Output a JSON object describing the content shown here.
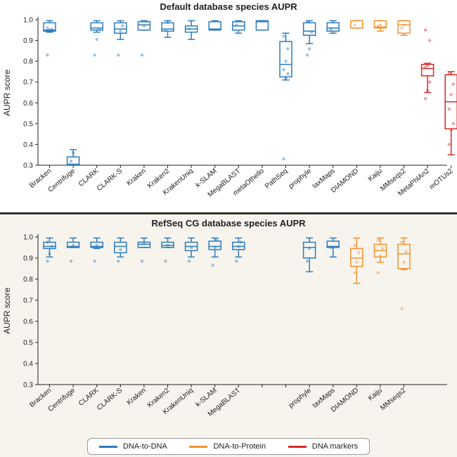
{
  "colors": {
    "dna": "#2c7bbd",
    "protein": "#f5922f",
    "markers": "#d62b2b"
  },
  "legend": [
    {
      "label": "DNA-to-DNA",
      "group": "dna"
    },
    {
      "label": "DNA-to-Protein",
      "group": "protein"
    },
    {
      "label": "DNA markers",
      "group": "markers"
    }
  ],
  "chart_data": [
    {
      "type": "box",
      "title": "Default database species AUPR",
      "ylabel": "AUPR score",
      "ylim": [
        0.3,
        1.0
      ],
      "yticks": [
        "0.3",
        "0.4",
        "0.5",
        "0.6",
        "0.7",
        "0.8",
        "0.9",
        "1.0"
      ],
      "categories": [
        "Bracken",
        "Centrifuge",
        "CLARK",
        "CLARK-S",
        "Kraken",
        "Kraken2",
        "KrakenUniq",
        "k-SLAM",
        "MegaBLAST",
        "metaOthello",
        "PathSeq",
        "prophyle",
        "taxMaps",
        "DIAMOND",
        "Kaiju",
        "MMseqs2",
        "MetaPhlAn2",
        "mOTUs2"
      ],
      "boxes": [
        {
          "group": "dna",
          "min": 0.94,
          "q1": 0.945,
          "median": 0.95,
          "q3": 0.985,
          "max": 0.995,
          "points": [
            0.83,
            0.95,
            0.955,
            0.96
          ]
        },
        {
          "group": "dna",
          "min": 0.3,
          "q1": 0.3,
          "median": 0.305,
          "q3": 0.34,
          "max": 0.375,
          "points": [
            0.32,
            0.36
          ]
        },
        {
          "group": "dna",
          "min": 0.94,
          "q1": 0.95,
          "median": 0.96,
          "q3": 0.985,
          "max": 0.995,
          "points": [
            0.83,
            0.905,
            0.955
          ]
        },
        {
          "group": "dna",
          "min": 0.905,
          "q1": 0.935,
          "median": 0.955,
          "q3": 0.985,
          "max": 0.995,
          "points": [
            0.83,
            0.945,
            0.97
          ]
        },
        {
          "group": "dna",
          "min": 0.95,
          "q1": 0.95,
          "median": 0.975,
          "q3": 0.99,
          "max": 0.995,
          "points": [
            0.83,
            0.97
          ]
        },
        {
          "group": "dna",
          "min": 0.915,
          "q1": 0.945,
          "median": 0.955,
          "q3": 0.985,
          "max": 0.995,
          "points": [
            0.95,
            0.985
          ]
        },
        {
          "group": "dna",
          "min": 0.905,
          "q1": 0.94,
          "median": 0.955,
          "q3": 0.97,
          "max": 0.995,
          "points": [
            0.955
          ]
        },
        {
          "group": "dna",
          "min": 0.95,
          "q1": 0.95,
          "median": 0.955,
          "q3": 0.99,
          "max": 0.995,
          "points": []
        },
        {
          "group": "dna",
          "min": 0.935,
          "q1": 0.95,
          "median": 0.97,
          "q3": 0.99,
          "max": 0.995,
          "points": [
            0.975
          ]
        },
        {
          "group": "dna",
          "min": 0.95,
          "q1": 0.95,
          "median": 0.99,
          "q3": 0.995,
          "max": 0.995,
          "points": []
        },
        {
          "group": "dna",
          "min": 0.71,
          "q1": 0.725,
          "median": 0.785,
          "q3": 0.895,
          "max": 0.935,
          "points": [
            0.33,
            0.72,
            0.74,
            0.76,
            0.8,
            0.86,
            0.92
          ]
        },
        {
          "group": "dna",
          "min": 0.885,
          "q1": 0.925,
          "median": 0.945,
          "q3": 0.985,
          "max": 0.995,
          "points": [
            0.83,
            0.86,
            0.94,
            0.99
          ]
        },
        {
          "group": "dna",
          "min": 0.935,
          "q1": 0.945,
          "median": 0.96,
          "q3": 0.985,
          "max": 0.995,
          "points": [
            0.955
          ]
        },
        {
          "group": "protein",
          "min": 0.96,
          "q1": 0.96,
          "median": 0.96,
          "q3": 0.995,
          "max": 0.995,
          "points": [
            0.975
          ]
        },
        {
          "group": "protein",
          "min": 0.945,
          "q1": 0.96,
          "median": 0.965,
          "q3": 0.995,
          "max": 0.995,
          "points": [
            0.97,
            0.975
          ]
        },
        {
          "group": "protein",
          "min": 0.925,
          "q1": 0.935,
          "median": 0.975,
          "q3": 0.995,
          "max": 0.995,
          "points": [
            0.96,
            0.975
          ]
        },
        {
          "group": "markers",
          "min": 0.65,
          "q1": 0.73,
          "median": 0.765,
          "q3": 0.785,
          "max": 0.79,
          "points": [
            0.62,
            0.66,
            0.7,
            0.77,
            0.78,
            0.9,
            0.95
          ]
        },
        {
          "group": "markers",
          "min": 0.35,
          "q1": 0.475,
          "median": 0.605,
          "q3": 0.735,
          "max": 0.75,
          "points": [
            0.4,
            0.47,
            0.5,
            0.57,
            0.64,
            0.69,
            0.74
          ]
        }
      ]
    },
    {
      "type": "box",
      "title": "RefSeq CG database species AUPR",
      "ylabel": "AUPR score",
      "ylim": [
        0.3,
        1.0
      ],
      "yticks": [
        "0.3",
        "0.4",
        "0.5",
        "0.6",
        "0.7",
        "0.8",
        "0.9",
        "1.0"
      ],
      "categories": [
        "Bracken",
        "Centrifuge",
        "CLARK",
        "CLARK-S",
        "Kraken",
        "Kraken2",
        "KrakenUniq",
        "k-SLAM",
        "MegaBLAST",
        "",
        "",
        "prophyle",
        "taxMaps",
        "DIAMOND",
        "Kaiju",
        "MMseqs2"
      ],
      "boxes": [
        {
          "group": "dna",
          "min": 0.905,
          "q1": 0.945,
          "median": 0.955,
          "q3": 0.975,
          "max": 0.995,
          "points": [
            0.885,
            0.92,
            0.955,
            0.975
          ]
        },
        {
          "group": "dna",
          "min": 0.95,
          "q1": 0.95,
          "median": 0.955,
          "q3": 0.975,
          "max": 0.995,
          "points": [
            0.885,
            0.96
          ]
        },
        {
          "group": "dna",
          "min": 0.945,
          "q1": 0.95,
          "median": 0.955,
          "q3": 0.975,
          "max": 0.995,
          "points": [
            0.885,
            0.96
          ]
        },
        {
          "group": "dna",
          "min": 0.905,
          "q1": 0.925,
          "median": 0.955,
          "q3": 0.975,
          "max": 0.995,
          "points": [
            0.885,
            0.94
          ]
        },
        {
          "group": "dna",
          "min": 0.95,
          "q1": 0.95,
          "median": 0.965,
          "q3": 0.975,
          "max": 0.995,
          "points": [
            0.885,
            0.97
          ]
        },
        {
          "group": "dna",
          "min": 0.95,
          "q1": 0.95,
          "median": 0.96,
          "q3": 0.975,
          "max": 0.995,
          "points": [
            0.885,
            0.96
          ]
        },
        {
          "group": "dna",
          "min": 0.905,
          "q1": 0.935,
          "median": 0.955,
          "q3": 0.975,
          "max": 0.995,
          "points": [
            0.885,
            0.95
          ]
        },
        {
          "group": "dna",
          "min": 0.905,
          "q1": 0.94,
          "median": 0.955,
          "q3": 0.98,
          "max": 0.995,
          "points": [
            0.865,
            0.95,
            0.985
          ]
        },
        {
          "group": "dna",
          "min": 0.905,
          "q1": 0.94,
          "median": 0.955,
          "q3": 0.975,
          "max": 0.995,
          "points": [
            0.885,
            0.955,
            0.975
          ]
        },
        null,
        null,
        {
          "group": "dna",
          "min": 0.835,
          "q1": 0.9,
          "median": 0.95,
          "q3": 0.975,
          "max": 0.995,
          "points": [
            0.885,
            0.945
          ]
        },
        {
          "group": "dna",
          "min": 0.905,
          "q1": 0.95,
          "median": 0.955,
          "q3": 0.98,
          "max": 0.995,
          "points": [
            0.95
          ]
        },
        {
          "group": "protein",
          "min": 0.78,
          "q1": 0.86,
          "median": 0.9,
          "q3": 0.945,
          "max": 0.995,
          "points": [
            0.83,
            0.88,
            0.925,
            0.96
          ]
        },
        {
          "group": "protein",
          "min": 0.88,
          "q1": 0.905,
          "median": 0.935,
          "q3": 0.965,
          "max": 0.995,
          "points": [
            0.83,
            0.91,
            0.945,
            0.985
          ]
        },
        {
          "group": "protein",
          "min": 0.845,
          "q1": 0.85,
          "median": 0.92,
          "q3": 0.965,
          "max": 0.995,
          "points": [
            0.66,
            0.88,
            0.93,
            0.975
          ]
        }
      ]
    }
  ]
}
